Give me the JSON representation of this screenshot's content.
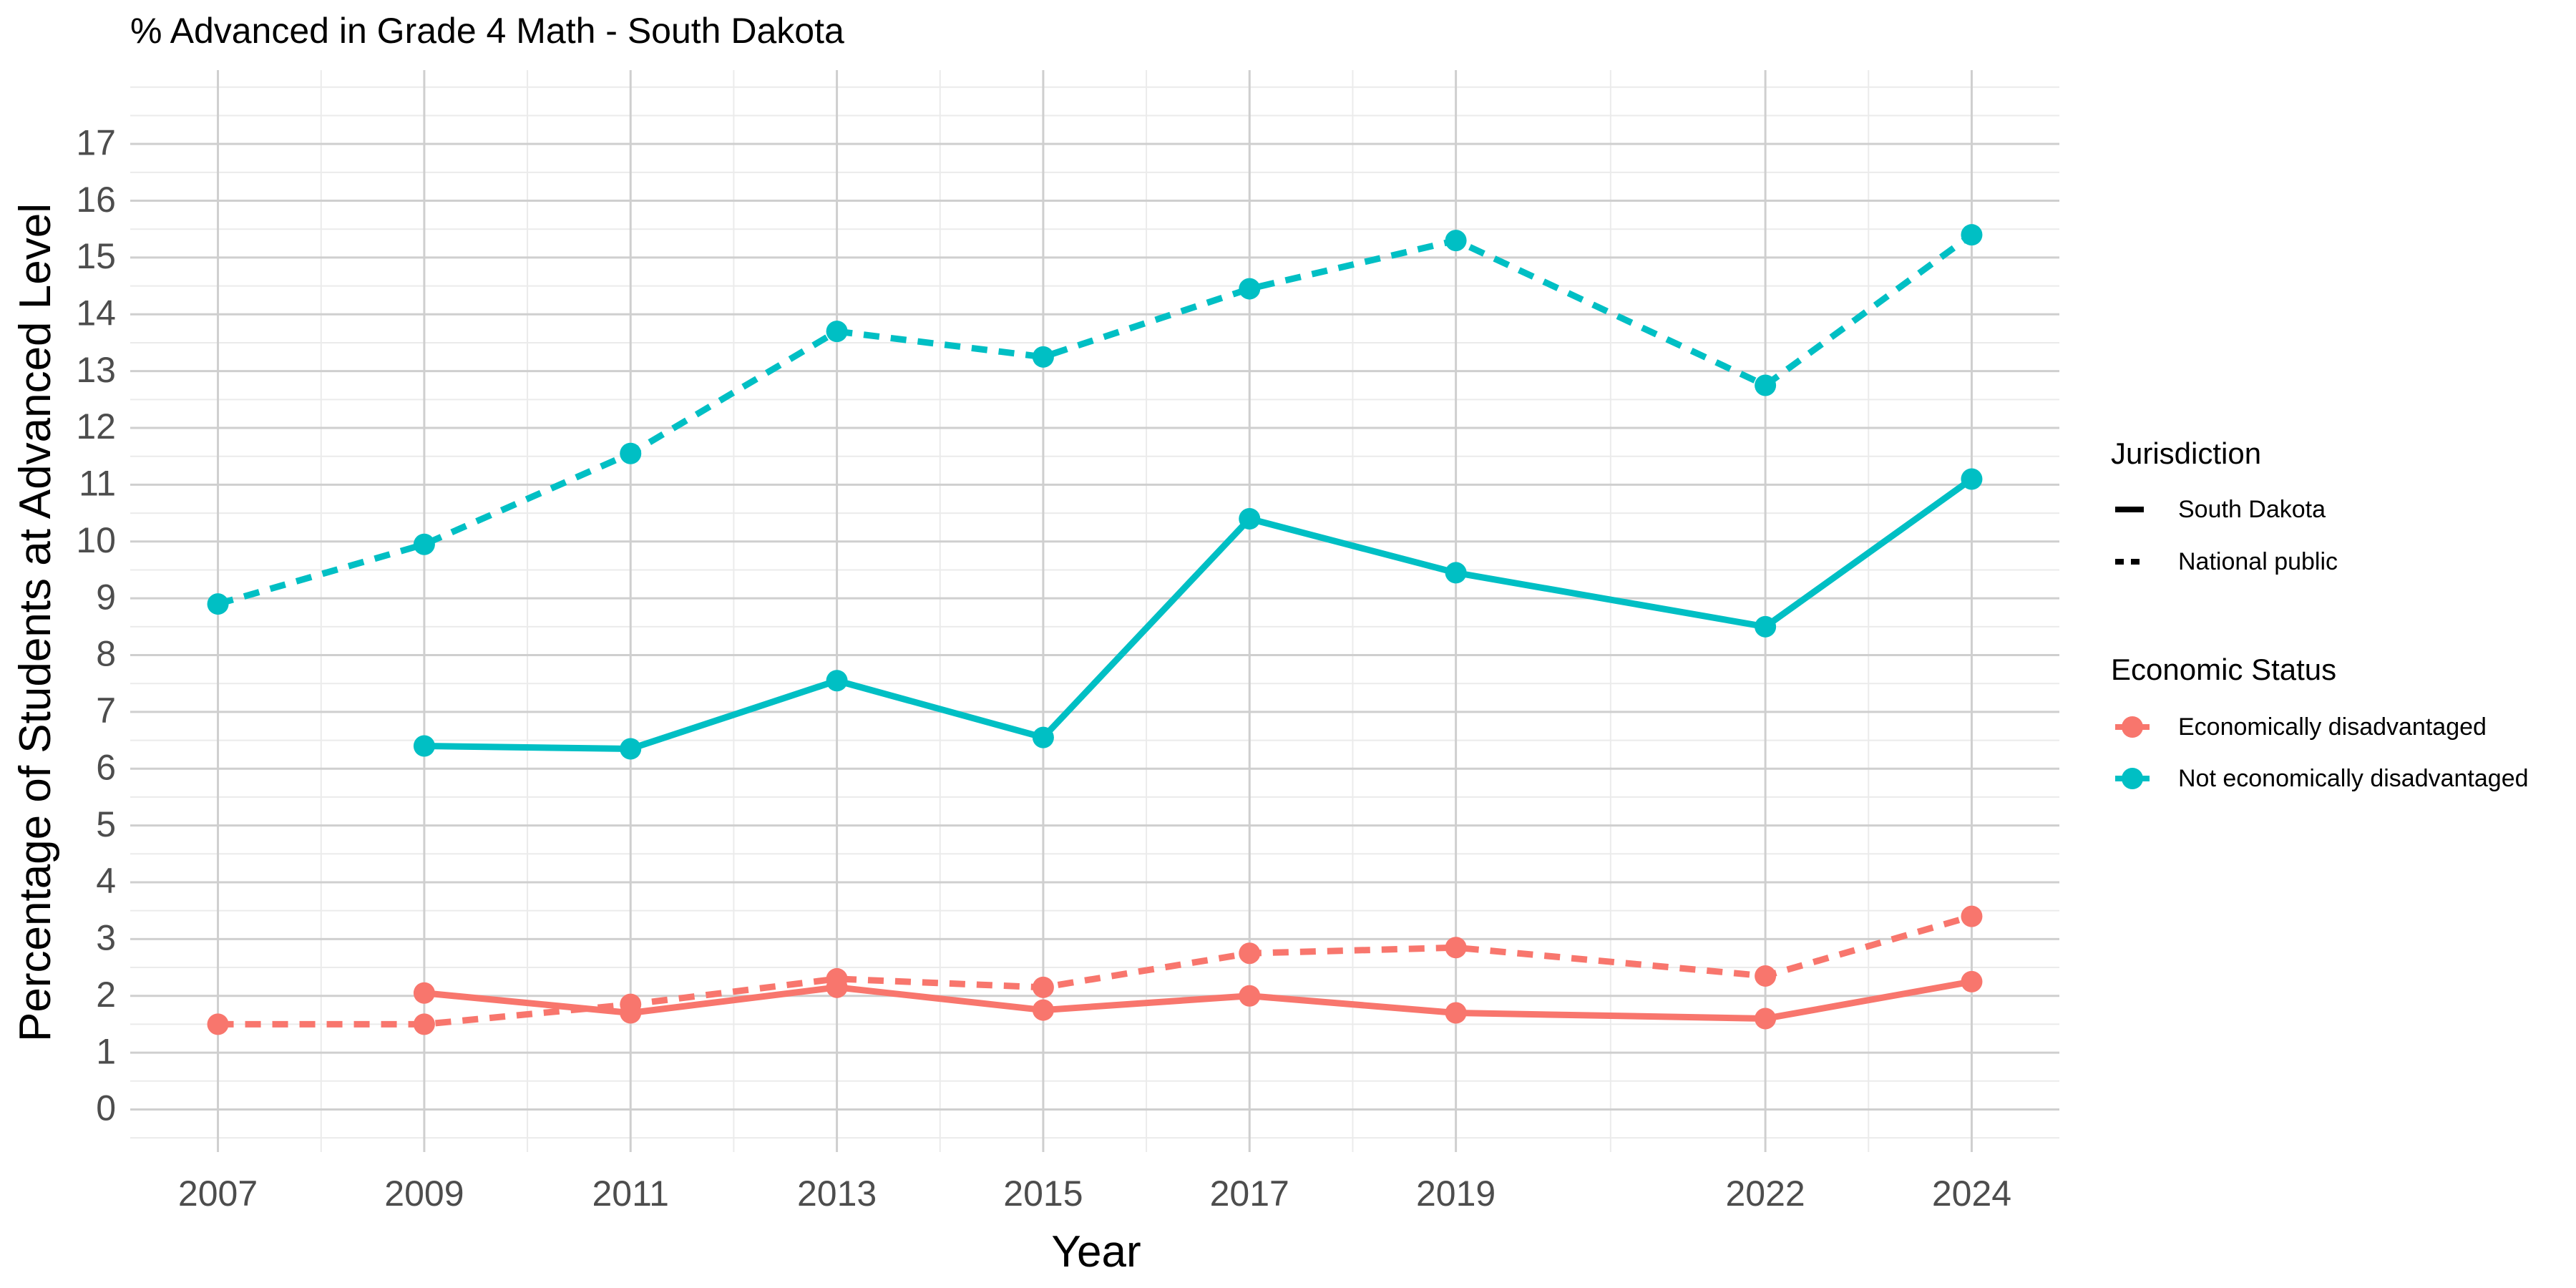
{
  "chart_data": {
    "type": "line",
    "title": "% Advanced in Grade 4 Math - South Dakota",
    "xlabel": "Year",
    "ylabel": "Percentage of Students at Advanced Level",
    "x_ticks": [
      2007,
      2009,
      2011,
      2013,
      2015,
      2017,
      2019,
      2022,
      2024
    ],
    "y_ticks": [
      0,
      1,
      2,
      3,
      4,
      5,
      6,
      7,
      8,
      9,
      10,
      11,
      12,
      13,
      14,
      15,
      16,
      17
    ],
    "xlim": [
      2006.15,
      2024.85
    ],
    "ylim": [
      -0.75,
      18.3
    ],
    "grid": true,
    "legend_position": "right",
    "colors": {
      "Economically disadvantaged": "#F8766D",
      "Not economically disadvantaged": "#00BFC4"
    },
    "legend": {
      "jurisdiction_title": "Jurisdiction",
      "jurisdiction_items": [
        {
          "label": "South Dakota",
          "dash": "solid"
        },
        {
          "label": "National public",
          "dash": "dashed"
        }
      ],
      "status_title": "Economic Status",
      "status_items": [
        {
          "label": "Economically disadvantaged",
          "color": "#F8766D"
        },
        {
          "label": "Not economically disadvantaged",
          "color": "#00BFC4"
        }
      ]
    },
    "series": [
      {
        "jurisdiction": "National public",
        "status": "Not economically disadvantaged",
        "dash": "dashed",
        "color": "#00BFC4",
        "points": [
          {
            "x": 2007,
            "y": 8.9
          },
          {
            "x": 2009,
            "y": 9.95
          },
          {
            "x": 2011,
            "y": 11.55
          },
          {
            "x": 2013,
            "y": 13.7
          },
          {
            "x": 2015,
            "y": 13.25
          },
          {
            "x": 2017,
            "y": 14.45
          },
          {
            "x": 2019,
            "y": 15.3
          },
          {
            "x": 2022,
            "y": 12.75
          },
          {
            "x": 2024,
            "y": 15.4
          }
        ]
      },
      {
        "jurisdiction": "South Dakota",
        "status": "Not economically disadvantaged",
        "dash": "solid",
        "color": "#00BFC4",
        "points": [
          {
            "x": 2009,
            "y": 6.4
          },
          {
            "x": 2011,
            "y": 6.35
          },
          {
            "x": 2013,
            "y": 7.55
          },
          {
            "x": 2015,
            "y": 6.55
          },
          {
            "x": 2017,
            "y": 10.4
          },
          {
            "x": 2019,
            "y": 9.45
          },
          {
            "x": 2022,
            "y": 8.5
          },
          {
            "x": 2024,
            "y": 11.1
          }
        ]
      },
      {
        "jurisdiction": "National public",
        "status": "Economically disadvantaged",
        "dash": "dashed",
        "color": "#F8766D",
        "points": [
          {
            "x": 2007,
            "y": 1.5
          },
          {
            "x": 2009,
            "y": 1.5
          },
          {
            "x": 2011,
            "y": 1.85
          },
          {
            "x": 2013,
            "y": 2.3
          },
          {
            "x": 2015,
            "y": 2.15
          },
          {
            "x": 2017,
            "y": 2.75
          },
          {
            "x": 2019,
            "y": 2.85
          },
          {
            "x": 2022,
            "y": 2.35
          },
          {
            "x": 2024,
            "y": 3.4
          }
        ]
      },
      {
        "jurisdiction": "South Dakota",
        "status": "Economically disadvantaged",
        "dash": "solid",
        "color": "#F8766D",
        "points": [
          {
            "x": 2009,
            "y": 2.05
          },
          {
            "x": 2011,
            "y": 1.7
          },
          {
            "x": 2013,
            "y": 2.15
          },
          {
            "x": 2015,
            "y": 1.75
          },
          {
            "x": 2017,
            "y": 2.0
          },
          {
            "x": 2019,
            "y": 1.7
          },
          {
            "x": 2022,
            "y": 1.6
          },
          {
            "x": 2024,
            "y": 2.25
          }
        ]
      }
    ]
  }
}
